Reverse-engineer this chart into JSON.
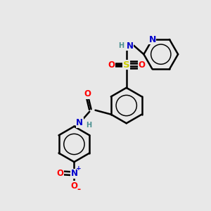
{
  "bg_color": "#e8e8e8",
  "bond_color": "#000000",
  "bond_width": 1.8,
  "figsize": [
    3.0,
    3.0
  ],
  "dpi": 100,
  "colors": {
    "N": "#0000cc",
    "O": "#ff0000",
    "S": "#cccc00",
    "H": "#4a9090",
    "C": "#000000"
  },
  "fs": 8.5,
  "fs_small": 7.0
}
